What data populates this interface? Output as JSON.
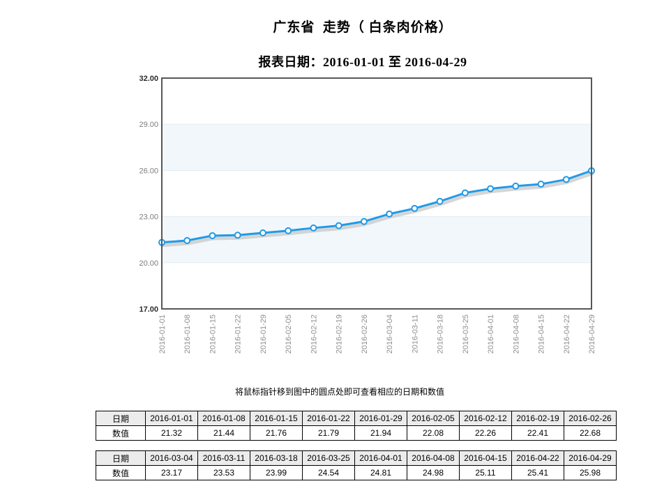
{
  "page": {
    "title": "广东省  走势（ 白条肉价格）",
    "subtitle": "报表日期：2016-01-01 至 2016-04-29",
    "hint": "将鼠标指针移到图中的圆点处即可查看相应的日期和数值"
  },
  "chart_data": {
    "type": "line",
    "title": "广东省  走势（ 白条肉价格）",
    "x": [
      "2016-01-01",
      "2016-01-08",
      "2016-01-15",
      "2016-01-22",
      "2016-01-29",
      "2016-02-05",
      "2016-02-12",
      "2016-02-19",
      "2016-02-26",
      "2016-03-04",
      "2016-03-11",
      "2016-03-18",
      "2016-03-25",
      "2016-04-01",
      "2016-04-08",
      "2016-04-15",
      "2016-04-22",
      "2016-04-29"
    ],
    "values": [
      21.32,
      21.44,
      21.76,
      21.79,
      21.94,
      22.08,
      22.26,
      22.41,
      22.68,
      23.17,
      23.53,
      23.99,
      24.54,
      24.81,
      24.98,
      25.11,
      25.41,
      25.98
    ],
    "ylim": [
      17,
      32
    ],
    "yticks": [
      17,
      20,
      23,
      26,
      29,
      32
    ],
    "ytick_decimals": 2,
    "xlabel": "",
    "ylabel": "",
    "legend": "none",
    "grid": "horizontal gridlines with alternating light-blue bands",
    "marker": "white circle with blue ring",
    "colors": {
      "line": "#1f9ae8",
      "marker_fill": "#ffffff",
      "shadow": "#c8c8c8",
      "band": "#f2f7fb",
      "grid": "#e2ecf3",
      "border": "#575757",
      "ylabel_inner": "#7d7d7d",
      "ylabel_edge": "#2b2b2b",
      "xlabel": "#8f8f8f"
    }
  },
  "tables": {
    "date_label": "日期",
    "value_label": "数值",
    "columns_per_table": 9,
    "value_decimals": 2
  }
}
